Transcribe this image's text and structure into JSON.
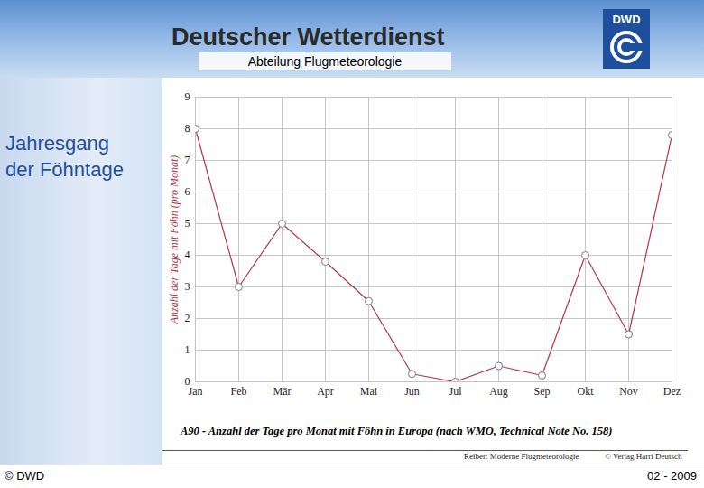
{
  "header": {
    "title": "Deutscher Wetterdienst",
    "subtitle": "Abteilung Flugmeteorologie",
    "logo": "DWD"
  },
  "slide_title_lines": [
    "Jahresgang",
    "der Föhntage"
  ],
  "footer": {
    "left": "© DWD",
    "right": "02 - 2009"
  },
  "chart_data": {
    "type": "line",
    "title": "A90 - Anzahl der Tage pro Monat mit Föhn in Europa (nach WMO, Technical Note No. 158)",
    "y_label": "Anzahl der Tage mit Föhn (pro Monat)",
    "annotations": [
      "Reiber: Moderne Flugmeteorologie",
      "© Verlag Harri Deutsch"
    ],
    "categories": [
      "Jan",
      "Feb",
      "Mär",
      "Apr",
      "Mai",
      "Jun",
      "Jul",
      "Aug",
      "Sep",
      "Okt",
      "Nov",
      "Dez"
    ],
    "values": [
      8,
      3,
      5,
      3.8,
      2.55,
      0.25,
      0,
      0.5,
      0.2,
      4,
      1.5,
      7.8
    ],
    "color": "#b8354a",
    "marker": "circle",
    "ylim": [
      0,
      9
    ],
    "yticks": [
      0,
      1,
      2,
      3,
      4,
      5,
      6,
      7,
      8,
      9
    ],
    "grid": true
  }
}
